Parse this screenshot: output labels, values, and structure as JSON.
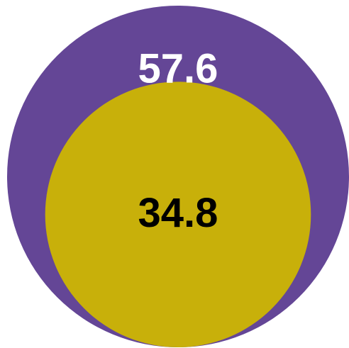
{
  "chart_data": {
    "type": "nested-circle",
    "title": "",
    "series": [
      {
        "value": 57.6,
        "label": "57.6",
        "color": "#644696",
        "label_color": "#ffffff"
      },
      {
        "value": 34.8,
        "label": "34.8",
        "color": "#c8b00a",
        "label_color": "#000000"
      }
    ]
  }
}
